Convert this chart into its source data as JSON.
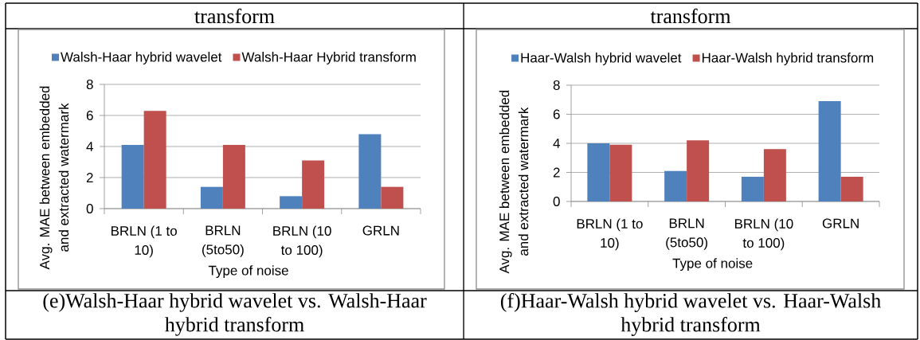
{
  "chart_data": [
    {
      "type": "bar",
      "categories": [
        "BRLN (1 to 10)",
        "BRLN (5to50)",
        "BRLN (10 to 100)",
        "GRLN"
      ],
      "series": [
        {
          "name": "Walsh-Haar hybrid wavelet",
          "color": "#4f81bd",
          "values": [
            4.1,
            1.4,
            0.8,
            4.8
          ]
        },
        {
          "name": "Walsh-Haar Hybrid transform",
          "color": "#c0504d",
          "values": [
            6.3,
            4.1,
            3.1,
            1.4
          ]
        }
      ],
      "xlabel": "Type of noise",
      "ylabel": "Avg. MAE between embedded and extracted watermark",
      "ylim": [
        0,
        8
      ],
      "yticks": [
        0,
        2,
        4,
        6,
        8
      ],
      "grid": "y",
      "legend": "top",
      "annotations": [
        "transform",
        "(e)Walsh-Haar hybrid wavelet vs. Walsh-Haar hybrid transform"
      ]
    },
    {
      "type": "bar",
      "categories": [
        "BRLN (1 to 10)",
        "BRLN (5to50)",
        "BRLN (10 to 100)",
        "GRLN"
      ],
      "series": [
        {
          "name": "Haar-Walsh hybrid wavelet",
          "color": "#4f81bd",
          "values": [
            4.0,
            2.1,
            1.7,
            6.9
          ]
        },
        {
          "name": "Haar-Walsh hybrid transform",
          "color": "#c0504d",
          "values": [
            3.9,
            4.2,
            3.6,
            1.7
          ]
        }
      ],
      "xlabel": "Type of noise",
      "ylabel": "Avg. MAE between embedded and extracted watermark",
      "ylim": [
        0,
        8
      ],
      "yticks": [
        0,
        2,
        4,
        6,
        8
      ],
      "grid": "y",
      "legend": "top",
      "annotations": [
        "transform",
        "(f)Haar-Walsh hybrid wavelet vs. Haar-Walsh hybrid transform"
      ]
    }
  ]
}
